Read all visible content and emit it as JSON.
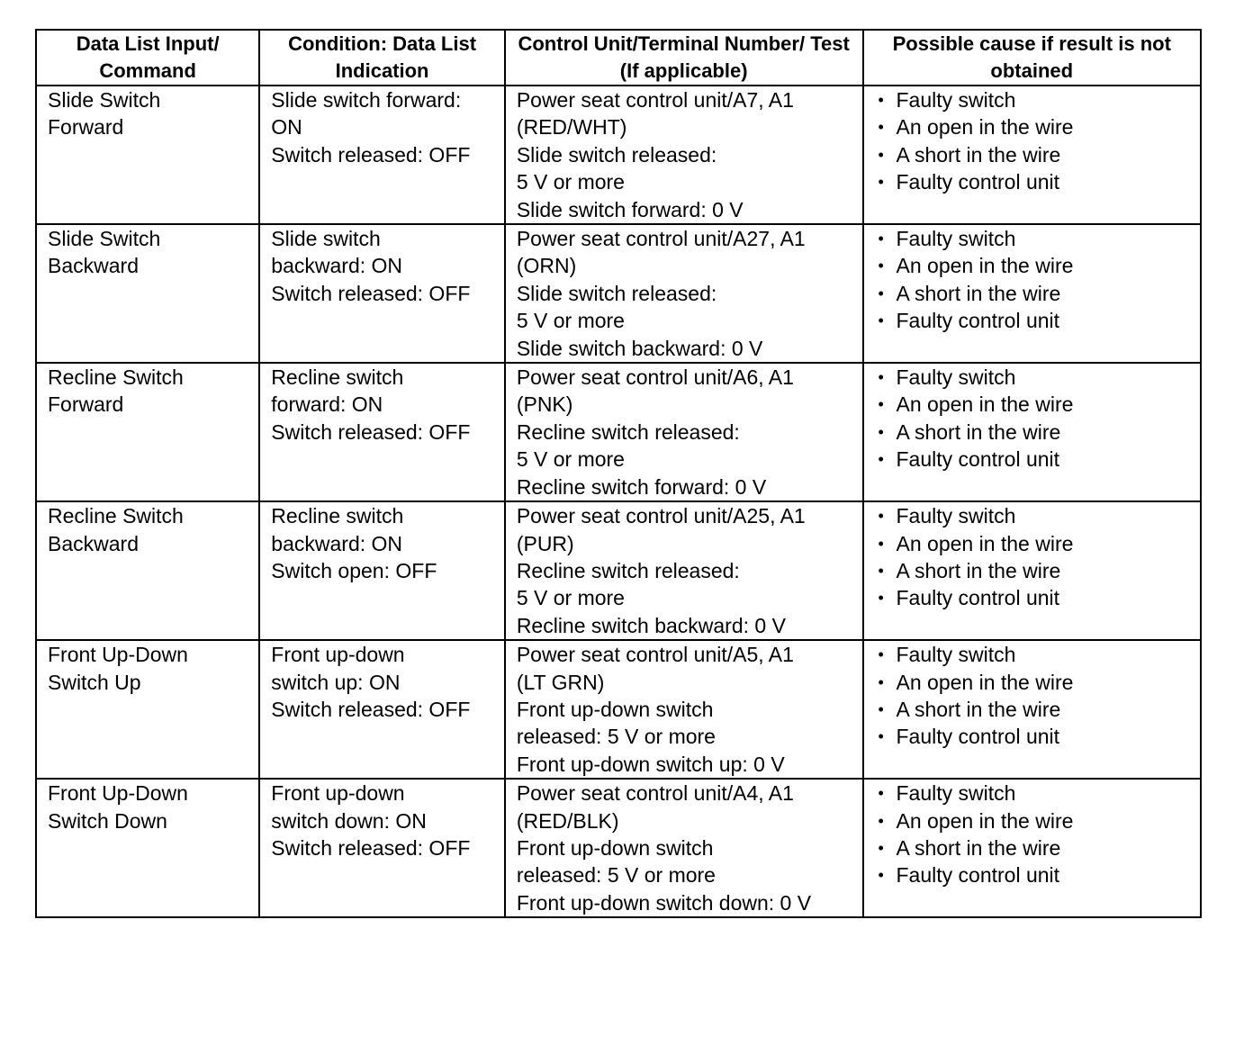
{
  "headers": [
    "Data List Input/ Command",
    "Condition: Data List Indication",
    "Control Unit/Terminal Number/ Test (If applicable)",
    "Possible cause if result is not obtained"
  ],
  "rows": [
    {
      "input": [
        "Slide Switch",
        "Forward"
      ],
      "condition": [
        "Slide switch forward:",
        "ON",
        "Switch released: OFF"
      ],
      "test": [
        "Power seat control unit/A7, A1",
        "(RED/WHT)",
        "Slide switch released:",
        "5 V or more",
        "Slide switch forward: 0 V"
      ],
      "causes": [
        "Faulty switch",
        "An open in the wire",
        "A short in the wire",
        "Faulty control unit"
      ]
    },
    {
      "input": [
        "Slide Switch",
        "Backward"
      ],
      "condition": [
        "Slide switch",
        "backward: ON",
        "Switch released: OFF"
      ],
      "test": [
        "Power seat control unit/A27, A1",
        "(ORN)",
        "Slide switch released:",
        "5 V or more",
        "Slide switch backward: 0 V"
      ],
      "causes": [
        "Faulty switch",
        "An open in the wire",
        "A short in the wire",
        "Faulty control unit"
      ]
    },
    {
      "input": [
        "Recline Switch",
        "Forward"
      ],
      "condition": [
        "Recline switch",
        "forward: ON",
        "Switch released: OFF"
      ],
      "test": [
        "Power seat control unit/A6, A1",
        "(PNK)",
        "Recline switch released:",
        "5 V or more",
        "Recline switch forward: 0 V"
      ],
      "causes": [
        "Faulty switch",
        "An open in the wire",
        "A short in the wire",
        "Faulty control unit"
      ]
    },
    {
      "input": [
        "Recline Switch",
        "Backward"
      ],
      "condition": [
        "Recline switch",
        "backward: ON",
        "Switch open: OFF"
      ],
      "test": [
        "Power seat control unit/A25, A1",
        "(PUR)",
        "Recline switch released:",
        "5 V or more",
        "Recline switch backward: 0 V"
      ],
      "causes": [
        "Faulty switch",
        "An open in the wire",
        "A short in the wire",
        "Faulty control unit"
      ]
    },
    {
      "input": [
        "Front Up-Down",
        "Switch Up"
      ],
      "condition": [
        "Front up-down",
        "switch up: ON",
        "Switch released: OFF"
      ],
      "test": [
        "Power seat control unit/A5, A1",
        "(LT GRN)",
        "Front up-down switch",
        "released: 5 V or more",
        "Front up-down switch up: 0 V"
      ],
      "causes": [
        "Faulty switch",
        "An open in the wire",
        "A short in the wire",
        "Faulty control unit"
      ]
    },
    {
      "input": [
        "Front Up-Down",
        "Switch Down"
      ],
      "condition": [
        "Front up-down",
        "switch down: ON",
        "Switch released: OFF"
      ],
      "test": [
        "Power seat control unit/A4, A1",
        "(RED/BLK)",
        "Front up-down switch",
        "released: 5 V or more",
        "Front up-down switch down: 0 V"
      ],
      "causes": [
        "Faulty switch",
        "An open in the wire",
        "A short in the wire",
        "Faulty control unit"
      ]
    }
  ]
}
